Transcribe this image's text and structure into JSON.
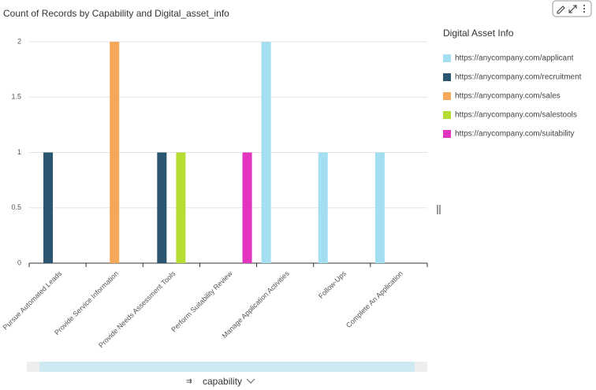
{
  "chart_data": {
    "type": "bar",
    "title": "Count of Records by Capability and Digital_asset_info",
    "x_label": "capability",
    "legend_title": "Digital Asset Info",
    "categories": [
      "Pursue Automated Leads",
      "Provide Service Information",
      "Provide Needs Assessment Tools",
      "Perform Suitability Review",
      "Manage Application Activities",
      "Follow-Ups",
      "Complete An Application"
    ],
    "series": [
      {
        "name": "https://anycompany.com/applicant",
        "color": "#a3dff0",
        "values": [
          null,
          null,
          null,
          null,
          2,
          1,
          1
        ]
      },
      {
        "name": "https://anycompany.com/recruitment",
        "color": "#2b5672",
        "values": [
          1,
          null,
          1,
          null,
          null,
          null,
          null
        ]
      },
      {
        "name": "https://anycompany.com/sales",
        "color": "#f5a85a",
        "values": [
          null,
          2,
          null,
          null,
          null,
          null,
          null
        ]
      },
      {
        "name": "https://anycompany.com/salestools",
        "color": "#b6dd34",
        "values": [
          null,
          null,
          1,
          null,
          null,
          null,
          null
        ]
      },
      {
        "name": "https://anycompany.com/suitability",
        "color": "#e234bf",
        "values": [
          null,
          null,
          null,
          1,
          null,
          null,
          null
        ]
      }
    ],
    "ylim": [
      0,
      2
    ],
    "yticks": [
      0,
      0.5,
      1,
      1.5,
      2
    ],
    "grid": true,
    "legend": "right"
  }
}
